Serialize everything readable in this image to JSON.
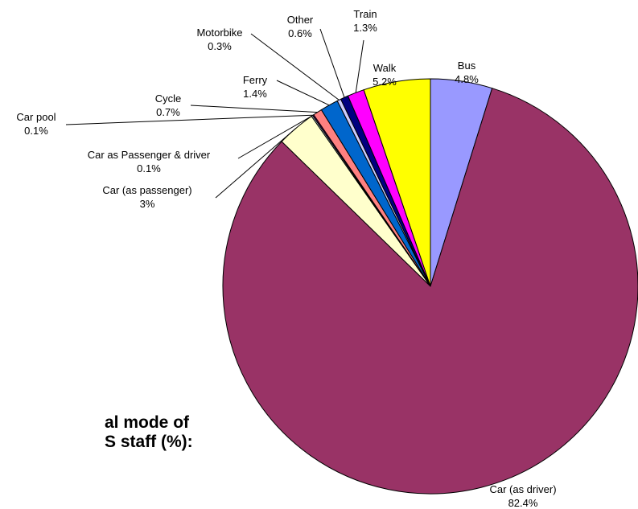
{
  "caption": {
    "line1": "al mode of",
    "line2": "S staff (%):"
  },
  "chart_data": {
    "type": "pie",
    "title": "",
    "slices": [
      {
        "label": "Bus",
        "value": 4.8,
        "value_label": "4.8%",
        "color": "#9999ff"
      },
      {
        "label": "Car (as driver)",
        "value": 82.4,
        "value_label": "82.4%",
        "color": "#993366"
      },
      {
        "label": "Car (as passenger)",
        "value": 3,
        "value_label": "3%",
        "color": "#ffffcc"
      },
      {
        "label": "Car as Passenger & driver",
        "value": 0.1,
        "value_label": "0.1%",
        "color": "#ccffff"
      },
      {
        "label": "Car pool",
        "value": 0.1,
        "value_label": "0.1%",
        "color": "#660066"
      },
      {
        "label": "Cycle",
        "value": 0.7,
        "value_label": "0.7%",
        "color": "#ff8080"
      },
      {
        "label": "Ferry",
        "value": 1.4,
        "value_label": "1.4%",
        "color": "#0066cc"
      },
      {
        "label": "Motorbike",
        "value": 0.3,
        "value_label": "0.3%",
        "color": "#ccccff"
      },
      {
        "label": "Other",
        "value": 0.6,
        "value_label": "0.6%",
        "color": "#000080"
      },
      {
        "label": "Train",
        "value": 1.3,
        "value_label": "1.3%",
        "color": "#ff00ff"
      },
      {
        "label": "Walk",
        "value": 5.2,
        "value_label": "5.2%",
        "color": "#ffff00"
      }
    ],
    "start_angle_deg": 0,
    "direction": "clockwise"
  }
}
